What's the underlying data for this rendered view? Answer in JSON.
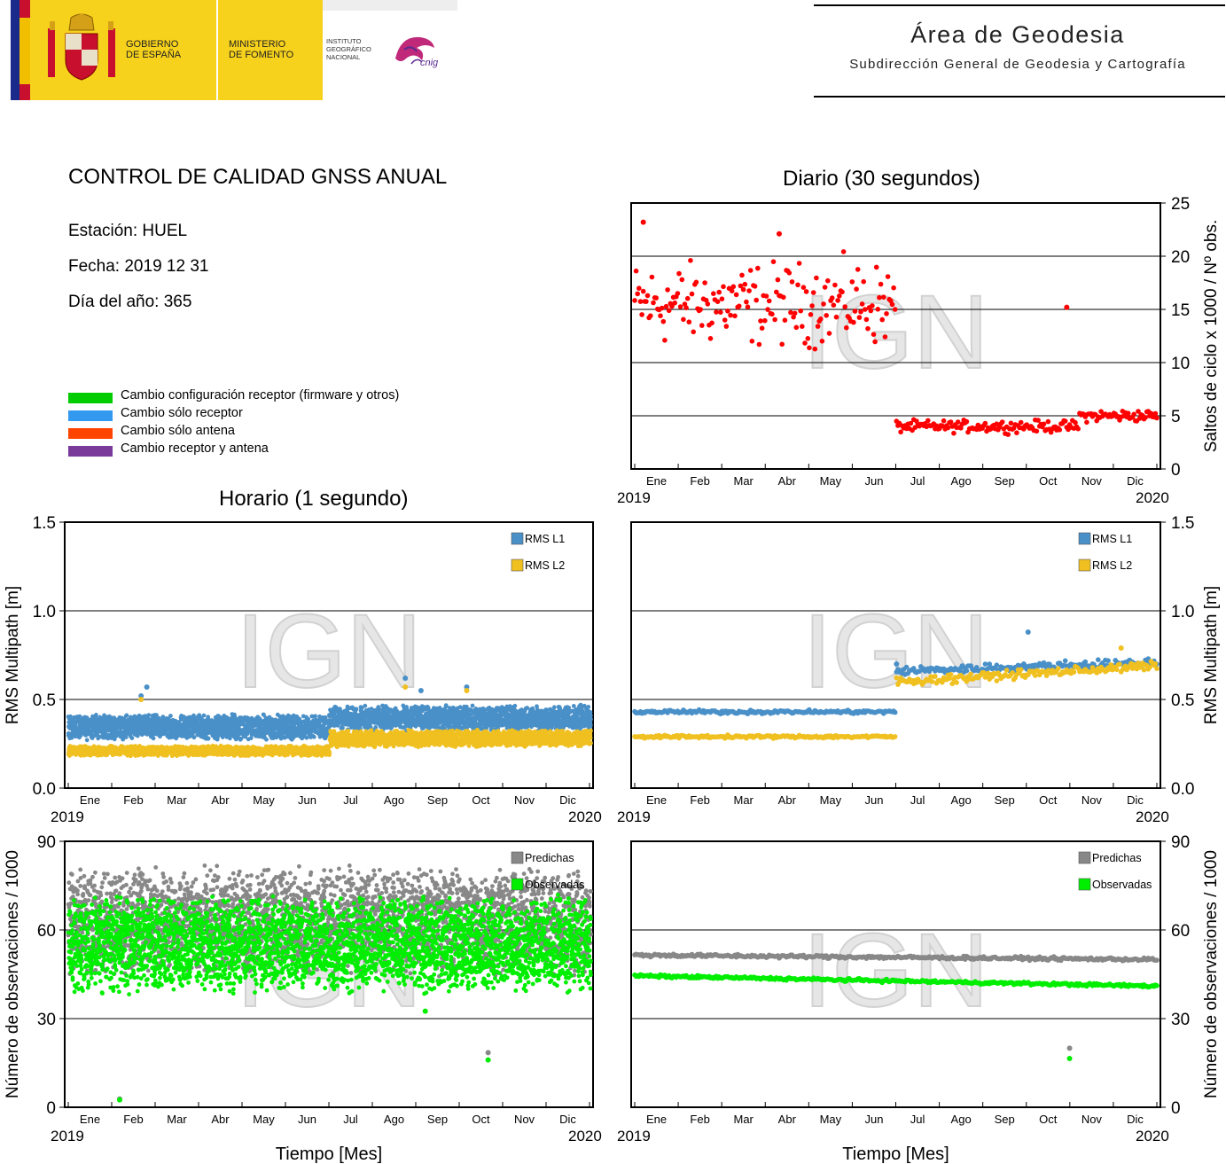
{
  "header": {
    "gobierno": [
      "GOBIERNO",
      "DE ESPAÑA"
    ],
    "ministerio": [
      "MINISTERIO",
      "DE FOMENTO"
    ],
    "instituto": [
      "INSTITUTO",
      "GEOGRÁFICO",
      "NACIONAL"
    ],
    "cnig": "cnig",
    "area_title": "Área de Geodesia",
    "area_subtitle": "Subdirección General de Geodesia y Cartografía"
  },
  "report": {
    "title": "CONTROL DE CALIDAD GNSS ANUAL",
    "station": "Estación: HUEL",
    "date": "Fecha: 2019 12 31",
    "doy": "Día del año: 365"
  },
  "change_legend": [
    {
      "label": "Cambio configuración receptor (firmware y otros)",
      "color": "#00cc00"
    },
    {
      "label": "Cambio sólo receptor",
      "color": "#3399ee"
    },
    {
      "label": "Cambio sólo antena",
      "color": "#ff4400"
    },
    {
      "label": "Cambio receptor y antena",
      "color": "#7a3a9a"
    }
  ],
  "section_titles": {
    "daily": "Diario (30 segundos)",
    "hourly": "Horario (1 segundo)"
  },
  "axis_common": {
    "months": [
      "Ene",
      "Feb",
      "Mar",
      "Abr",
      "May",
      "Jun",
      "Jul",
      "Ago",
      "Sep",
      "Oct",
      "Nov",
      "Dic"
    ],
    "year_start": "2019",
    "year_end": "2020",
    "xlabel": "Tiempo [Mes]"
  },
  "watermark": "IGN",
  "chart_data": [
    {
      "id": "daily_slips",
      "type": "scatter",
      "ylabel": "Saltos de ciclo x 1000 / Nº obs.",
      "ylim": [
        0,
        25
      ],
      "yticks": [
        0,
        5,
        10,
        15,
        20,
        25
      ],
      "grid": true,
      "series": [
        {
          "color": "#ff0000",
          "segments": [
            {
              "x_range": [
                0,
                182
              ],
              "mean": 15.5,
              "spread": 5.5
            },
            {
              "x_range": [
                183,
                310
              ],
              "mean": 4.0,
              "spread": 0.8
            },
            {
              "x_range": [
                311,
                365
              ],
              "mean": 5.0,
              "spread": 0.8
            }
          ],
          "outliers": [
            [
              302,
              15.2
            ],
            [
              6,
              23.2
            ],
            [
              101,
              22.1
            ]
          ]
        }
      ]
    },
    {
      "id": "hourly_multipath",
      "type": "scatter",
      "ylabel": "RMS Multipath [m]",
      "ylim": [
        0,
        1.5
      ],
      "yticks": [
        "0.0",
        "0.5",
        "1.0",
        "1.5"
      ],
      "grid": true,
      "legend_position": "top-right",
      "series": [
        {
          "name": "RMS L1",
          "color": "#4a90c8",
          "segments": [
            {
              "x_range": [
                0,
                182
              ],
              "low": 0.27,
              "high": 0.42
            },
            {
              "x_range": [
                183,
                365
              ],
              "low": 0.32,
              "high": 0.47
            }
          ],
          "outliers": [
            [
              55,
              0.57
            ],
            [
              51,
              0.52
            ],
            [
              236,
              0.62
            ],
            [
              279,
              0.57
            ],
            [
              247,
              0.55
            ]
          ]
        },
        {
          "name": "RMS L2",
          "color": "#f0c020",
          "segments": [
            {
              "x_range": [
                0,
                182
              ],
              "low": 0.18,
              "high": 0.24
            },
            {
              "x_range": [
                183,
                365
              ],
              "low": 0.23,
              "high": 0.33
            }
          ],
          "outliers": [
            [
              51,
              0.5
            ],
            [
              236,
              0.57
            ],
            [
              279,
              0.55
            ]
          ]
        }
      ]
    },
    {
      "id": "daily_multipath",
      "type": "scatter",
      "ylabel": "RMS Multipath [m]",
      "ylim": [
        0,
        1.5
      ],
      "yticks": [
        "0.0",
        "0.5",
        "1.0",
        "1.5"
      ],
      "grid": true,
      "legend_position": "top-right",
      "series": [
        {
          "name": "RMS L1",
          "color": "#4a90c8",
          "segments": [
            {
              "x_range": [
                0,
                182
              ],
              "mean": 0.43,
              "spread": 0.015
            },
            {
              "x_range": [
                183,
                365
              ],
              "mean": 0.66,
              "spread": 0.035,
              "trend": 0.05
            }
          ],
          "outliers": [
            [
              275,
              0.88
            ],
            [
              183,
              0.7
            ]
          ]
        },
        {
          "name": "RMS L2",
          "color": "#f0c020",
          "segments": [
            {
              "x_range": [
                0,
                182
              ],
              "mean": 0.29,
              "spread": 0.012
            },
            {
              "x_range": [
                183,
                365
              ],
              "mean": 0.6,
              "spread": 0.035,
              "trend": 0.09
            }
          ],
          "outliers": [
            [
              340,
              0.79
            ]
          ]
        }
      ]
    },
    {
      "id": "hourly_observations",
      "type": "scatter",
      "ylabel": "Número de observaciones / 1000",
      "ylim": [
        0,
        90
      ],
      "yticks": [
        0,
        30,
        60,
        90
      ],
      "grid": true,
      "legend_position": "top-right",
      "series": [
        {
          "name": "Predichas",
          "color": "#888888",
          "segments": [
            {
              "x_range": [
                0,
                365
              ],
              "low": 44,
              "high": 82
            }
          ],
          "outliers": [
            [
              294,
              18.5
            ],
            [
              36,
              2.8
            ]
          ]
        },
        {
          "name": "Observadas",
          "color": "#00ee00",
          "segments": [
            {
              "x_range": [
                0,
                365
              ],
              "low": 38,
              "high": 72
            }
          ],
          "outliers": [
            [
              294,
              16
            ],
            [
              36,
              2.5
            ],
            [
              250,
              32.5
            ]
          ]
        }
      ]
    },
    {
      "id": "daily_observations",
      "type": "scatter",
      "ylabel": "Número de observaciones / 1000",
      "ylim": [
        0,
        90
      ],
      "yticks": [
        0,
        30,
        60,
        90
      ],
      "grid": true,
      "legend_position": "top-right",
      "series": [
        {
          "name": "Predichas",
          "color": "#888888",
          "segments": [
            {
              "x_range": [
                0,
                365
              ],
              "mean": 51.5,
              "spread": 0.8,
              "trend": -1.5
            }
          ],
          "outliers": [
            [
              304,
              20
            ]
          ]
        },
        {
          "name": "Observadas",
          "color": "#00ee00",
          "segments": [
            {
              "x_range": [
                0,
                365
              ],
              "mean": 44.5,
              "spread": 0.7,
              "trend": -3.5
            }
          ],
          "outliers": [
            [
              304,
              16.5
            ]
          ]
        }
      ]
    }
  ]
}
